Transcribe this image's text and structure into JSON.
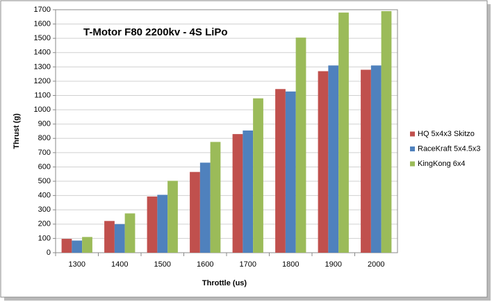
{
  "chart_data": {
    "type": "bar",
    "title": "T-Motor F80 2200kv - 4S LiPo",
    "x_label": "Throttle (us)",
    "y_label": "Thrust (g)",
    "categories": [
      "1300",
      "1400",
      "1500",
      "1600",
      "1700",
      "1800",
      "1900",
      "2000"
    ],
    "series": [
      {
        "name": "HQ 5x4x3 Skitzo",
        "color": "#c0504d",
        "values": [
          97,
          222,
          393,
          565,
          830,
          1145,
          1270,
          1280
        ]
      },
      {
        "name": "RaceKraft 5x4.5x3",
        "color": "#4f81bd",
        "values": [
          85,
          200,
          405,
          630,
          855,
          1128,
          1310,
          1310
        ]
      },
      {
        "name": "KingKong 6x4",
        "color": "#9bbb59",
        "values": [
          110,
          275,
          503,
          775,
          1080,
          1505,
          1680,
          1690
        ]
      }
    ],
    "ylim": [
      0,
      1700
    ],
    "yticks": [
      0,
      100,
      200,
      300,
      400,
      500,
      600,
      700,
      800,
      900,
      1000,
      1100,
      1200,
      1300,
      1400,
      1500,
      1600,
      1700
    ],
    "grid": true,
    "legend": "right"
  }
}
